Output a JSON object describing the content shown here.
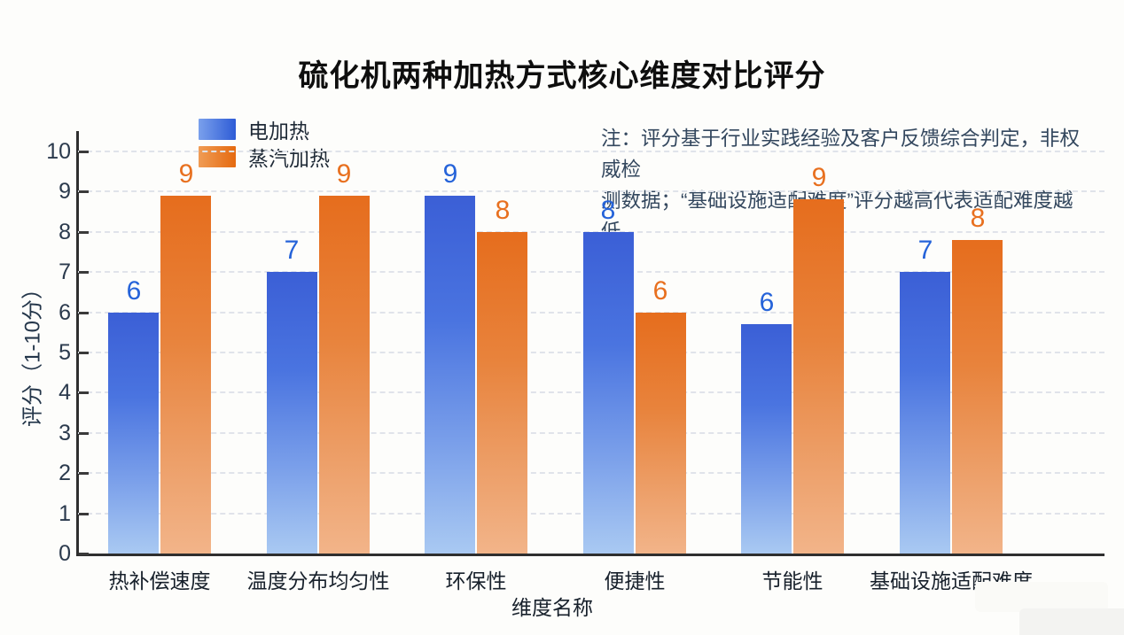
{
  "title": "硫化机两种加热方式核心维度对比评分",
  "note": {
    "line1": "注：评分基于行业实践经验及客户反馈综合判定，非权威检",
    "line2": "测数据；“基础设施适配难度”评分越高代表适配难度越低"
  },
  "legend": [
    {
      "label": "电加热",
      "color": "#3b5fd6"
    },
    {
      "label": "蒸汽加热",
      "color": "#e66d1d"
    }
  ],
  "colors": {
    "blue_top": "#3b5fd6",
    "blue_bottom": "#a9c9f2",
    "orange_top": "#e66d1d",
    "orange_bottom": "#f2b489",
    "blue_label": "#2563d9",
    "orange_label": "#e8701f",
    "axis": "#2f2f2f",
    "grid": "#e0e3ea"
  },
  "chart_data": {
    "type": "bar",
    "title": "硫化机两种加热方式核心维度对比评分",
    "categories": [
      "热补偿速度",
      "温度分布均匀性",
      "环保性",
      "便捷性",
      "节能性",
      "基础设施适配难度"
    ],
    "series": [
      {
        "name": "电加热",
        "labels": [
          6,
          7,
          9,
          8,
          6,
          7
        ],
        "values": [
          6.0,
          7.0,
          8.9,
          8.0,
          5.7,
          7.0
        ]
      },
      {
        "name": "蒸汽加热",
        "labels": [
          9,
          9,
          8,
          6,
          9,
          8
        ],
        "values": [
          8.9,
          8.9,
          8.0,
          6.0,
          8.8,
          7.8
        ]
      }
    ],
    "xlabel": "维度名称",
    "ylabel": "评分（1-10分）",
    "ylim": [
      0,
      10
    ],
    "yticks": [
      0,
      1,
      2,
      3,
      4,
      5,
      6,
      7,
      8,
      9,
      10
    ],
    "grid": "horizontal-dashed",
    "legend_position": "upper-left",
    "annotation": "注：评分基于行业实践经验及客户反馈综合判定，非权威检测数据；“基础设施适配难度”评分越高代表适配难度越低"
  }
}
